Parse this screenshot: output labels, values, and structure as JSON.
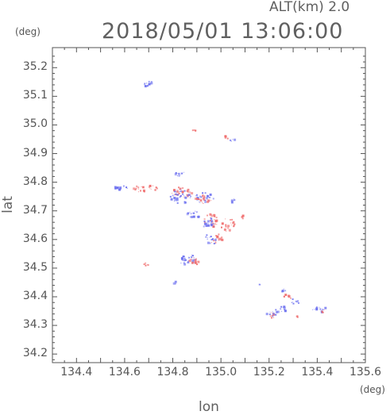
{
  "header": {
    "altitude_label": "ALT(km)  2.0",
    "timestamp": "2018/05/01 13:06:00"
  },
  "chart_data": {
    "type": "heatmap",
    "title": "2018/05/01 13:06:00",
    "subtitle": "ALT(km)  2.0",
    "xlabel": "lon",
    "ylabel": "lat",
    "x_unit": "(deg)",
    "y_unit": "(deg)",
    "xlim": [
      134.3,
      135.6
    ],
    "ylim": [
      34.17,
      35.27
    ],
    "x_ticks": [
      "134.4",
      "134.6",
      "134.8",
      "135.0",
      "135.2",
      "135.4",
      "135.6"
    ],
    "y_ticks": [
      "34.2",
      "34.3",
      "34.4",
      "34.5",
      "34.6",
      "34.7",
      "34.8",
      "34.9",
      "35.0",
      "35.1",
      "35.2"
    ],
    "grid": false,
    "colors": {
      "positive": "#f07070",
      "negative": "#6f73f0",
      "frame": "#555555"
    },
    "clusters": [
      {
        "lon": 134.7,
        "lat": 35.14,
        "rx": 0.025,
        "ry": 0.012,
        "color": "negative",
        "n": 14
      },
      {
        "lon": 134.89,
        "lat": 34.98,
        "rx": 0.008,
        "ry": 0.004,
        "color": "positive",
        "n": 4
      },
      {
        "lon": 135.02,
        "lat": 34.955,
        "rx": 0.01,
        "ry": 0.006,
        "color": "positive",
        "n": 4
      },
      {
        "lon": 135.05,
        "lat": 34.945,
        "rx": 0.012,
        "ry": 0.005,
        "color": "negative",
        "n": 4
      },
      {
        "lon": 134.83,
        "lat": 34.83,
        "rx": 0.02,
        "ry": 0.01,
        "color": "negative",
        "n": 12
      },
      {
        "lon": 134.59,
        "lat": 34.78,
        "rx": 0.03,
        "ry": 0.01,
        "color": "negative",
        "n": 14
      },
      {
        "lon": 134.66,
        "lat": 34.775,
        "rx": 0.03,
        "ry": 0.012,
        "color": "positive",
        "n": 16
      },
      {
        "lon": 134.72,
        "lat": 34.78,
        "rx": 0.02,
        "ry": 0.01,
        "color": "positive",
        "n": 10
      },
      {
        "lon": 134.84,
        "lat": 34.765,
        "rx": 0.045,
        "ry": 0.02,
        "color": "positive",
        "n": 30
      },
      {
        "lon": 134.83,
        "lat": 34.75,
        "rx": 0.045,
        "ry": 0.025,
        "color": "negative",
        "n": 36
      },
      {
        "lon": 134.93,
        "lat": 34.745,
        "rx": 0.04,
        "ry": 0.018,
        "color": "negative",
        "n": 26
      },
      {
        "lon": 134.93,
        "lat": 34.74,
        "rx": 0.035,
        "ry": 0.015,
        "color": "positive",
        "n": 18
      },
      {
        "lon": 134.89,
        "lat": 34.69,
        "rx": 0.03,
        "ry": 0.015,
        "color": "negative",
        "n": 18
      },
      {
        "lon": 134.96,
        "lat": 34.665,
        "rx": 0.03,
        "ry": 0.025,
        "color": "positive",
        "n": 24
      },
      {
        "lon": 134.95,
        "lat": 34.655,
        "rx": 0.03,
        "ry": 0.02,
        "color": "negative",
        "n": 18
      },
      {
        "lon": 135.05,
        "lat": 34.74,
        "rx": 0.012,
        "ry": 0.012,
        "color": "negative",
        "n": 6
      },
      {
        "lon": 135.09,
        "lat": 34.68,
        "rx": 0.008,
        "ry": 0.008,
        "color": "positive",
        "n": 4
      },
      {
        "lon": 135.03,
        "lat": 34.65,
        "rx": 0.03,
        "ry": 0.025,
        "color": "positive",
        "n": 20
      },
      {
        "lon": 134.98,
        "lat": 34.6,
        "rx": 0.03,
        "ry": 0.02,
        "color": "positive",
        "n": 16
      },
      {
        "lon": 134.96,
        "lat": 34.6,
        "rx": 0.03,
        "ry": 0.02,
        "color": "negative",
        "n": 14
      },
      {
        "lon": 134.86,
        "lat": 34.53,
        "rx": 0.035,
        "ry": 0.02,
        "color": "negative",
        "n": 28
      },
      {
        "lon": 134.89,
        "lat": 34.525,
        "rx": 0.025,
        "ry": 0.018,
        "color": "positive",
        "n": 14
      },
      {
        "lon": 134.69,
        "lat": 34.515,
        "rx": 0.01,
        "ry": 0.008,
        "color": "positive",
        "n": 5
      },
      {
        "lon": 134.81,
        "lat": 34.45,
        "rx": 0.01,
        "ry": 0.005,
        "color": "negative",
        "n": 4
      },
      {
        "lon": 135.16,
        "lat": 34.445,
        "rx": 0.01,
        "ry": 0.004,
        "color": "negative",
        "n": 3
      },
      {
        "lon": 135.26,
        "lat": 34.42,
        "rx": 0.01,
        "ry": 0.008,
        "color": "negative",
        "n": 4
      },
      {
        "lon": 135.28,
        "lat": 34.4,
        "rx": 0.02,
        "ry": 0.01,
        "color": "positive",
        "n": 8
      },
      {
        "lon": 135.31,
        "lat": 34.385,
        "rx": 0.02,
        "ry": 0.01,
        "color": "negative",
        "n": 8
      },
      {
        "lon": 135.25,
        "lat": 34.355,
        "rx": 0.025,
        "ry": 0.012,
        "color": "negative",
        "n": 12
      },
      {
        "lon": 135.21,
        "lat": 34.335,
        "rx": 0.02,
        "ry": 0.01,
        "color": "positive",
        "n": 8
      },
      {
        "lon": 135.21,
        "lat": 34.34,
        "rx": 0.02,
        "ry": 0.01,
        "color": "negative",
        "n": 8
      },
      {
        "lon": 135.32,
        "lat": 34.33,
        "rx": 0.01,
        "ry": 0.004,
        "color": "positive",
        "n": 3
      },
      {
        "lon": 135.41,
        "lat": 34.355,
        "rx": 0.03,
        "ry": 0.01,
        "color": "negative",
        "n": 12
      },
      {
        "lon": 135.42,
        "lat": 34.35,
        "rx": 0.015,
        "ry": 0.006,
        "color": "positive",
        "n": 4
      }
    ]
  }
}
